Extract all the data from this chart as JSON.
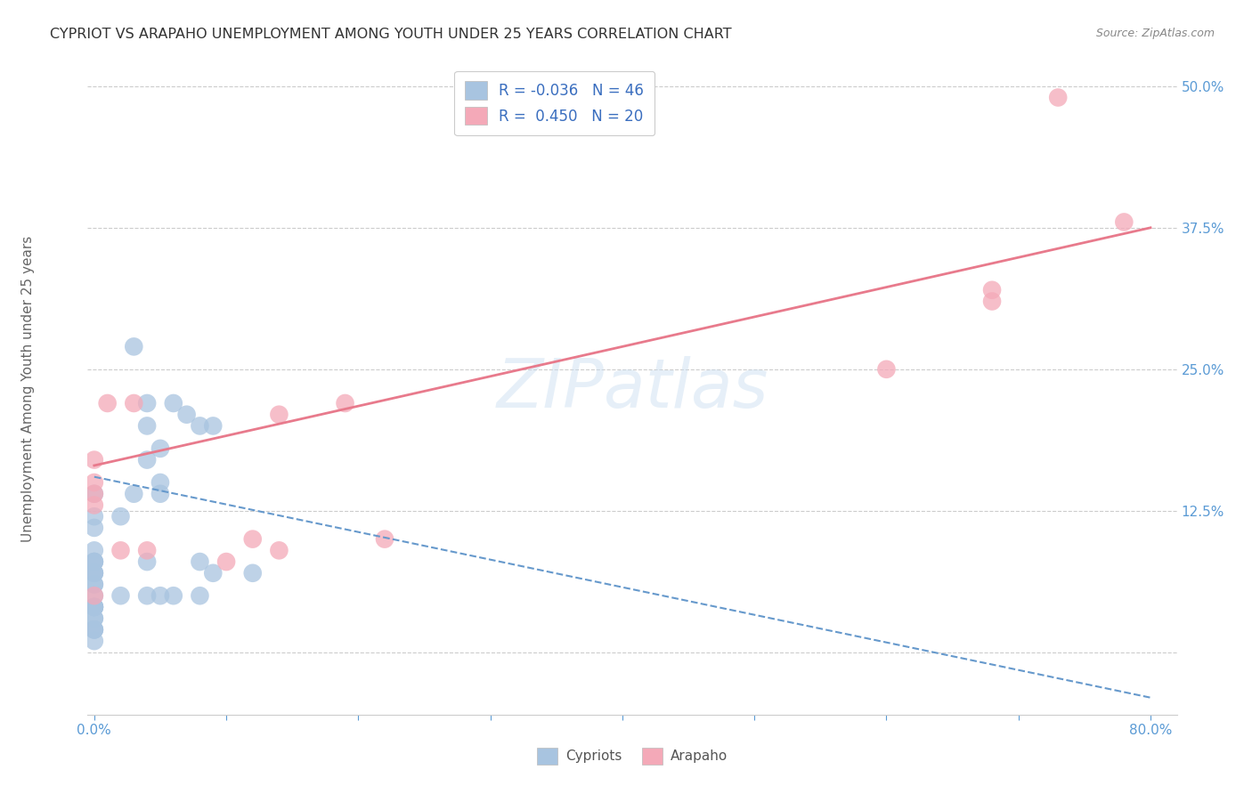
{
  "title": "CYPRIOT VS ARAPAHO UNEMPLOYMENT AMONG YOUTH UNDER 25 YEARS CORRELATION CHART",
  "source": "Source: ZipAtlas.com",
  "ylabel": "Unemployment Among Youth under 25 years",
  "xlim": [
    -0.005,
    0.82
  ],
  "ylim": [
    -0.055,
    0.52
  ],
  "xticks": [
    0.0,
    0.1,
    0.2,
    0.3,
    0.4,
    0.5,
    0.6,
    0.7,
    0.8
  ],
  "xticklabels": [
    "0.0%",
    "",
    "",
    "",
    "",
    "",
    "",
    "",
    "80.0%"
  ],
  "ytick_positions": [
    0.0,
    0.125,
    0.25,
    0.375,
    0.5
  ],
  "yticklabels": [
    "",
    "12.5%",
    "25.0%",
    "37.5%",
    "50.0%"
  ],
  "grid_color": "#cccccc",
  "watermark": "ZIPatlas",
  "legend_r_cypriot": "-0.036",
  "legend_n_cypriot": "46",
  "legend_r_arapaho": "0.450",
  "legend_n_arapaho": "20",
  "cypriot_color": "#a8c4e0",
  "arapaho_color": "#f4a9b8",
  "cypriot_line_color": "#6699cc",
  "arapaho_line_color": "#e87a8c",
  "cypriot_scatter_x": [
    0.0,
    0.0,
    0.0,
    0.0,
    0.0,
    0.0,
    0.0,
    0.0,
    0.0,
    0.0,
    0.0,
    0.0,
    0.0,
    0.0,
    0.0,
    0.0,
    0.0,
    0.0,
    0.0,
    0.0,
    0.0,
    0.0,
    0.0,
    0.0,
    0.02,
    0.02,
    0.03,
    0.03,
    0.04,
    0.04,
    0.04,
    0.04,
    0.04,
    0.05,
    0.05,
    0.05,
    0.05,
    0.06,
    0.06,
    0.07,
    0.08,
    0.08,
    0.08,
    0.09,
    0.09,
    0.12
  ],
  "cypriot_scatter_y": [
    0.14,
    0.12,
    0.11,
    0.09,
    0.08,
    0.08,
    0.08,
    0.07,
    0.07,
    0.07,
    0.06,
    0.06,
    0.05,
    0.04,
    0.04,
    0.04,
    0.04,
    0.04,
    0.03,
    0.03,
    0.02,
    0.02,
    0.02,
    0.01,
    0.12,
    0.05,
    0.27,
    0.14,
    0.22,
    0.2,
    0.17,
    0.08,
    0.05,
    0.18,
    0.15,
    0.14,
    0.05,
    0.22,
    0.05,
    0.21,
    0.2,
    0.08,
    0.05,
    0.2,
    0.07,
    0.07
  ],
  "arapaho_scatter_x": [
    0.0,
    0.0,
    0.0,
    0.0,
    0.0,
    0.01,
    0.02,
    0.03,
    0.04,
    0.1,
    0.12,
    0.14,
    0.14,
    0.19,
    0.22,
    0.6,
    0.68,
    0.68,
    0.73,
    0.78
  ],
  "arapaho_scatter_y": [
    0.17,
    0.15,
    0.14,
    0.13,
    0.05,
    0.22,
    0.09,
    0.22,
    0.09,
    0.08,
    0.1,
    0.09,
    0.21,
    0.22,
    0.1,
    0.25,
    0.31,
    0.32,
    0.49,
    0.38
  ],
  "cypriot_trendline_x": [
    0.0,
    0.8
  ],
  "cypriot_trendline_y": [
    0.155,
    -0.04
  ],
  "arapaho_trendline_x": [
    0.0,
    0.8
  ],
  "arapaho_trendline_y": [
    0.165,
    0.375
  ],
  "background_color": "#ffffff",
  "title_color": "#333333",
  "tick_label_color": "#5b9bd5",
  "ylabel_color": "#666666",
  "legend_text_color": "#3a6ebf"
}
